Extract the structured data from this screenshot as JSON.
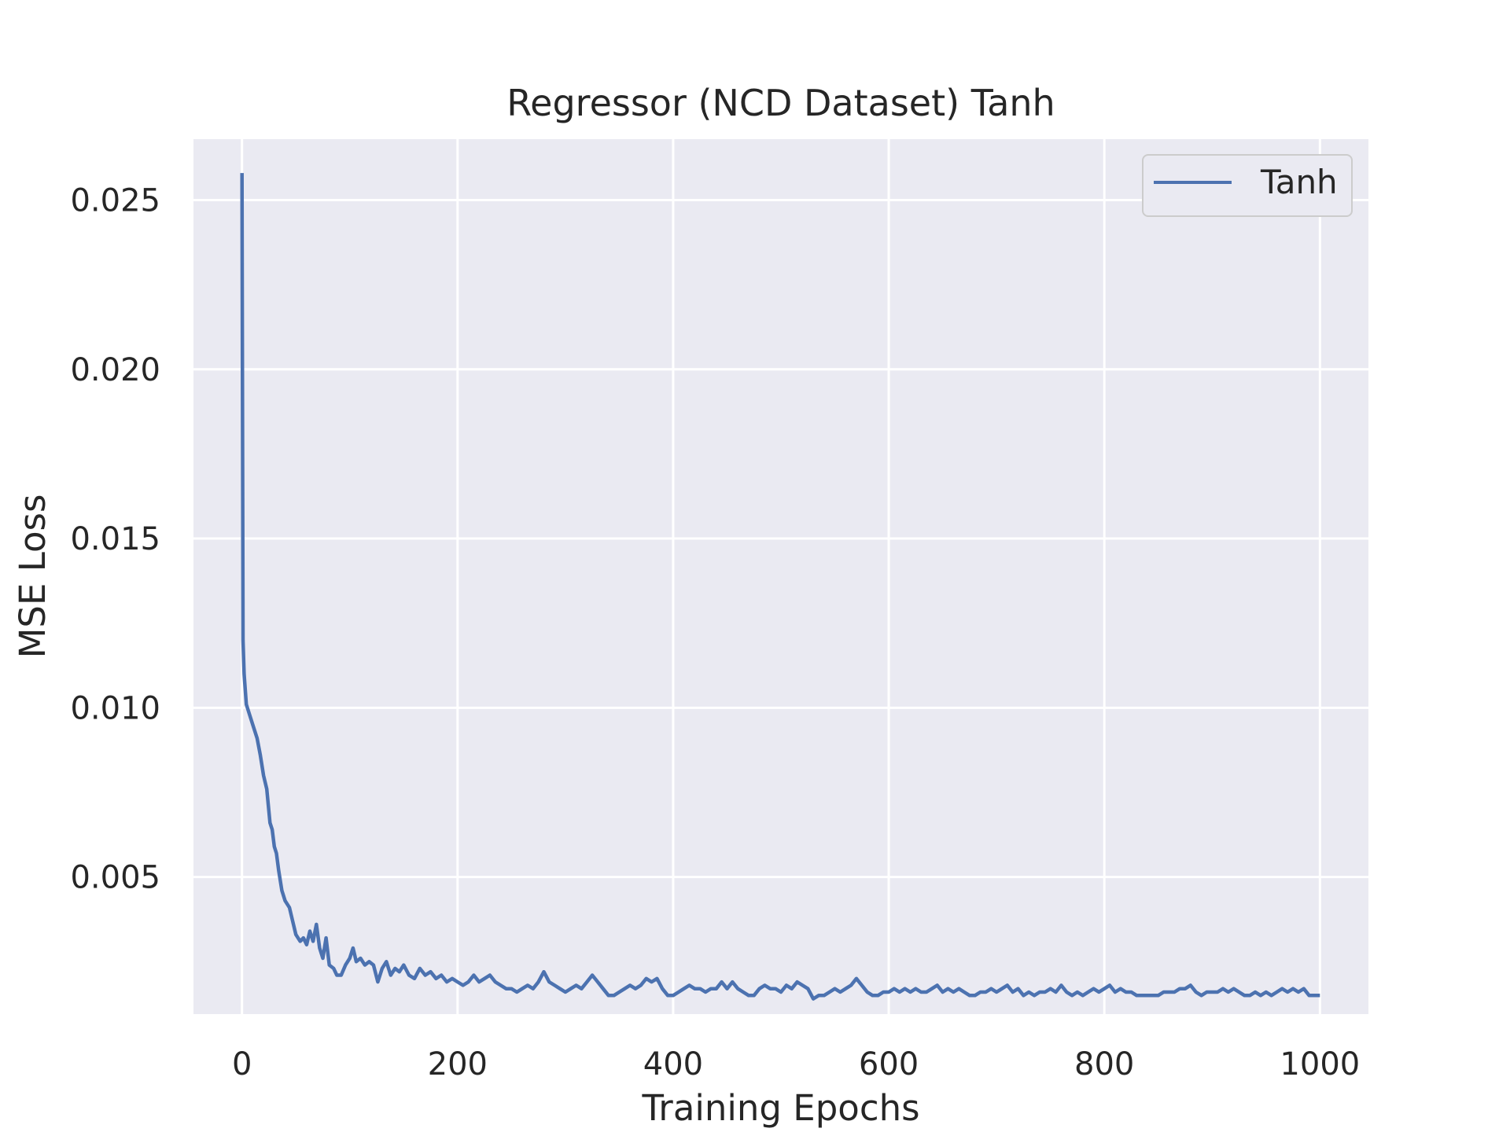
{
  "chart_data": {
    "type": "line",
    "title": "Regressor (NCD Dataset) Tanh",
    "xlabel": "Training Epochs",
    "ylabel": "MSE Loss",
    "xlim": [
      -45,
      1045
    ],
    "ylim": [
      0.00095,
      0.0268
    ],
    "xticks": [
      0,
      200,
      400,
      600,
      800,
      1000
    ],
    "xtick_labels": [
      "0",
      "200",
      "400",
      "600",
      "800",
      "1000"
    ],
    "yticks": [
      0.005,
      0.01,
      0.015,
      0.02,
      0.025
    ],
    "ytick_labels": [
      "0.005",
      "0.010",
      "0.015",
      "0.020",
      "0.025"
    ],
    "grid": true,
    "legend_position": "top-right",
    "series": [
      {
        "name": "Tanh",
        "color": "#4c72b0",
        "points": [
          [
            0,
            0.0258
          ],
          [
            1,
            0.012
          ],
          [
            2,
            0.011
          ],
          [
            4,
            0.0101
          ],
          [
            7,
            0.0098
          ],
          [
            10,
            0.0095
          ],
          [
            14,
            0.0091
          ],
          [
            17,
            0.0086
          ],
          [
            20,
            0.008
          ],
          [
            23,
            0.0076
          ],
          [
            26,
            0.0066
          ],
          [
            28,
            0.0064
          ],
          [
            30,
            0.0059
          ],
          [
            32,
            0.0057
          ],
          [
            34,
            0.0052
          ],
          [
            37,
            0.0046
          ],
          [
            40,
            0.0043
          ],
          [
            44,
            0.0041
          ],
          [
            47,
            0.0037
          ],
          [
            50,
            0.0033
          ],
          [
            54,
            0.0031
          ],
          [
            57,
            0.0032
          ],
          [
            60,
            0.003
          ],
          [
            63,
            0.0034
          ],
          [
            66,
            0.0031
          ],
          [
            69,
            0.0036
          ],
          [
            72,
            0.0029
          ],
          [
            75,
            0.0026
          ],
          [
            78,
            0.0032
          ],
          [
            81,
            0.0024
          ],
          [
            85,
            0.0023
          ],
          [
            88,
            0.0021
          ],
          [
            92,
            0.0021
          ],
          [
            96,
            0.0024
          ],
          [
            100,
            0.0026
          ],
          [
            103,
            0.0029
          ],
          [
            106,
            0.0025
          ],
          [
            110,
            0.0026
          ],
          [
            114,
            0.0024
          ],
          [
            118,
            0.0025
          ],
          [
            122,
            0.0024
          ],
          [
            126,
            0.0019
          ],
          [
            130,
            0.0023
          ],
          [
            134,
            0.0025
          ],
          [
            138,
            0.0021
          ],
          [
            142,
            0.0023
          ],
          [
            146,
            0.0022
          ],
          [
            150,
            0.0024
          ],
          [
            155,
            0.0021
          ],
          [
            160,
            0.002
          ],
          [
            165,
            0.0023
          ],
          [
            170,
            0.0021
          ],
          [
            175,
            0.0022
          ],
          [
            180,
            0.002
          ],
          [
            185,
            0.0021
          ],
          [
            190,
            0.0019
          ],
          [
            195,
            0.002
          ],
          [
            200,
            0.0019
          ],
          [
            205,
            0.0018
          ],
          [
            210,
            0.0019
          ],
          [
            215,
            0.0021
          ],
          [
            220,
            0.0019
          ],
          [
            225,
            0.002
          ],
          [
            230,
            0.0021
          ],
          [
            235,
            0.0019
          ],
          [
            240,
            0.0018
          ],
          [
            245,
            0.0017
          ],
          [
            250,
            0.0017
          ],
          [
            255,
            0.0016
          ],
          [
            260,
            0.0017
          ],
          [
            265,
            0.0018
          ],
          [
            270,
            0.0017
          ],
          [
            275,
            0.0019
          ],
          [
            280,
            0.0022
          ],
          [
            285,
            0.0019
          ],
          [
            290,
            0.0018
          ],
          [
            295,
            0.0017
          ],
          [
            300,
            0.0016
          ],
          [
            305,
            0.0017
          ],
          [
            310,
            0.0018
          ],
          [
            315,
            0.0017
          ],
          [
            320,
            0.0019
          ],
          [
            325,
            0.0021
          ],
          [
            330,
            0.0019
          ],
          [
            335,
            0.0017
          ],
          [
            340,
            0.0015
          ],
          [
            345,
            0.0015
          ],
          [
            350,
            0.0016
          ],
          [
            355,
            0.0017
          ],
          [
            360,
            0.0018
          ],
          [
            365,
            0.0017
          ],
          [
            370,
            0.0018
          ],
          [
            375,
            0.002
          ],
          [
            380,
            0.0019
          ],
          [
            385,
            0.002
          ],
          [
            390,
            0.0017
          ],
          [
            395,
            0.0015
          ],
          [
            400,
            0.0015
          ],
          [
            405,
            0.0016
          ],
          [
            410,
            0.0017
          ],
          [
            415,
            0.0018
          ],
          [
            420,
            0.0017
          ],
          [
            425,
            0.0017
          ],
          [
            430,
            0.0016
          ],
          [
            435,
            0.0017
          ],
          [
            440,
            0.0017
          ],
          [
            445,
            0.0019
          ],
          [
            450,
            0.0017
          ],
          [
            455,
            0.0019
          ],
          [
            460,
            0.0017
          ],
          [
            465,
            0.0016
          ],
          [
            470,
            0.0015
          ],
          [
            475,
            0.0015
          ],
          [
            480,
            0.0017
          ],
          [
            485,
            0.0018
          ],
          [
            490,
            0.0017
          ],
          [
            495,
            0.0017
          ],
          [
            500,
            0.0016
          ],
          [
            505,
            0.0018
          ],
          [
            510,
            0.0017
          ],
          [
            515,
            0.0019
          ],
          [
            520,
            0.0018
          ],
          [
            525,
            0.0017
          ],
          [
            530,
            0.0014
          ],
          [
            535,
            0.0015
          ],
          [
            540,
            0.0015
          ],
          [
            545,
            0.0016
          ],
          [
            550,
            0.0017
          ],
          [
            555,
            0.0016
          ],
          [
            560,
            0.0017
          ],
          [
            565,
            0.0018
          ],
          [
            570,
            0.002
          ],
          [
            575,
            0.0018
          ],
          [
            580,
            0.0016
          ],
          [
            585,
            0.0015
          ],
          [
            590,
            0.0015
          ],
          [
            595,
            0.0016
          ],
          [
            600,
            0.0016
          ],
          [
            605,
            0.0017
          ],
          [
            610,
            0.0016
          ],
          [
            615,
            0.0017
          ],
          [
            620,
            0.0016
          ],
          [
            625,
            0.0017
          ],
          [
            630,
            0.0016
          ],
          [
            635,
            0.0016
          ],
          [
            640,
            0.0017
          ],
          [
            645,
            0.0018
          ],
          [
            650,
            0.0016
          ],
          [
            655,
            0.0017
          ],
          [
            660,
            0.0016
          ],
          [
            665,
            0.0017
          ],
          [
            670,
            0.0016
          ],
          [
            675,
            0.0015
          ],
          [
            680,
            0.0015
          ],
          [
            685,
            0.0016
          ],
          [
            690,
            0.0016
          ],
          [
            695,
            0.0017
          ],
          [
            700,
            0.0016
          ],
          [
            705,
            0.0017
          ],
          [
            710,
            0.0018
          ],
          [
            715,
            0.0016
          ],
          [
            720,
            0.0017
          ],
          [
            725,
            0.0015
          ],
          [
            730,
            0.0016
          ],
          [
            735,
            0.0015
          ],
          [
            740,
            0.0016
          ],
          [
            745,
            0.0016
          ],
          [
            750,
            0.0017
          ],
          [
            755,
            0.0016
          ],
          [
            760,
            0.0018
          ],
          [
            765,
            0.0016
          ],
          [
            770,
            0.0015
          ],
          [
            775,
            0.0016
          ],
          [
            780,
            0.0015
          ],
          [
            785,
            0.0016
          ],
          [
            790,
            0.0017
          ],
          [
            795,
            0.0016
          ],
          [
            800,
            0.0017
          ],
          [
            805,
            0.0018
          ],
          [
            810,
            0.0016
          ],
          [
            815,
            0.0017
          ],
          [
            820,
            0.0016
          ],
          [
            825,
            0.0016
          ],
          [
            830,
            0.0015
          ],
          [
            835,
            0.0015
          ],
          [
            840,
            0.0015
          ],
          [
            845,
            0.0015
          ],
          [
            850,
            0.0015
          ],
          [
            855,
            0.0016
          ],
          [
            860,
            0.0016
          ],
          [
            865,
            0.0016
          ],
          [
            870,
            0.0017
          ],
          [
            875,
            0.0017
          ],
          [
            880,
            0.0018
          ],
          [
            885,
            0.0016
          ],
          [
            890,
            0.0015
          ],
          [
            895,
            0.0016
          ],
          [
            900,
            0.0016
          ],
          [
            905,
            0.0016
          ],
          [
            910,
            0.0017
          ],
          [
            915,
            0.0016
          ],
          [
            920,
            0.0017
          ],
          [
            925,
            0.0016
          ],
          [
            930,
            0.0015
          ],
          [
            935,
            0.0015
          ],
          [
            940,
            0.0016
          ],
          [
            945,
            0.0015
          ],
          [
            950,
            0.0016
          ],
          [
            955,
            0.0015
          ],
          [
            960,
            0.0016
          ],
          [
            965,
            0.0017
          ],
          [
            970,
            0.0016
          ],
          [
            975,
            0.0017
          ],
          [
            980,
            0.0016
          ],
          [
            985,
            0.0017
          ],
          [
            990,
            0.0015
          ],
          [
            995,
            0.0015
          ],
          [
            1000,
            0.0015
          ]
        ]
      }
    ]
  }
}
